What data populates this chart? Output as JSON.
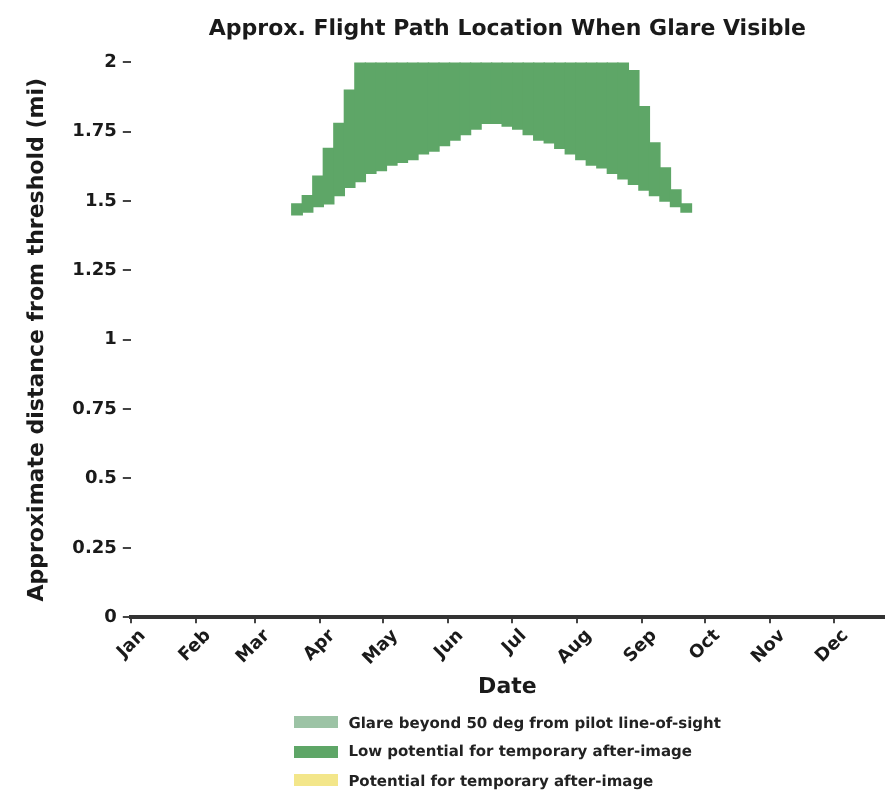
{
  "chart_data": {
    "type": "bar",
    "title": "Approx. Flight Path Location When Glare Visible",
    "xlabel": "Date",
    "ylabel": "Approximate distance from threshold (mi)",
    "x": [
      "--03-21",
      "--03-26",
      "--03-31",
      "--04-05",
      "--04-10",
      "--04-15",
      "--04-20",
      "--04-25",
      "--04-30",
      "--05-05",
      "--05-10",
      "--05-15",
      "--05-20",
      "--05-25",
      "--05-30",
      "--06-04",
      "--06-09",
      "--06-14",
      "--06-19",
      "--06-24",
      "--06-29",
      "--07-04",
      "--07-09",
      "--07-14",
      "--07-19",
      "--07-24",
      "--07-29",
      "--08-03",
      "--08-08",
      "--08-13",
      "--08-18",
      "--08-23",
      "--08-28",
      "--09-02",
      "--09-07",
      "--09-12",
      "--09-17",
      "--09-22"
    ],
    "series": [
      {
        "name": "Glare beyond 50 deg from pilot line-of-sight",
        "color": "#9cc3a5",
        "values": [
          null,
          null,
          null,
          null,
          null,
          null,
          null,
          null,
          null,
          null,
          null,
          null,
          null,
          null,
          null,
          null,
          null,
          null,
          null,
          null,
          null,
          null,
          null,
          null,
          null,
          null,
          null,
          null,
          null,
          null,
          null,
          null,
          null,
          null,
          null,
          null,
          null,
          null
        ]
      },
      {
        "name": "Low potential for temporary after-image",
        "color": "#5ea667",
        "base": [
          1.45,
          1.46,
          1.48,
          1.49,
          1.52,
          1.55,
          1.57,
          1.6,
          1.61,
          1.63,
          1.64,
          1.65,
          1.67,
          1.68,
          1.7,
          1.72,
          1.74,
          1.76,
          1.78,
          1.78,
          1.77,
          1.76,
          1.74,
          1.72,
          1.71,
          1.69,
          1.67,
          1.65,
          1.63,
          1.62,
          1.6,
          1.58,
          1.56,
          1.54,
          1.52,
          1.5,
          1.48,
          1.46
        ],
        "values": [
          0.04,
          0.06,
          0.11,
          0.2,
          0.26,
          0.35,
          0.43,
          0.4,
          0.39,
          0.37,
          0.36,
          0.35,
          0.33,
          0.32,
          0.3,
          0.28,
          0.26,
          0.24,
          0.22,
          0.22,
          0.23,
          0.24,
          0.26,
          0.28,
          0.29,
          0.31,
          0.33,
          0.35,
          0.37,
          0.38,
          0.4,
          0.42,
          0.41,
          0.3,
          0.19,
          0.12,
          0.06,
          0.03
        ]
      },
      {
        "name": "Potential for temporary after-image",
        "color": "#f3e68a",
        "values": [
          null,
          null,
          null,
          null,
          null,
          null,
          null,
          null,
          null,
          null,
          null,
          null,
          null,
          null,
          null,
          null,
          null,
          null,
          null,
          null,
          null,
          null,
          null,
          null,
          null,
          null,
          null,
          null,
          null,
          null,
          null,
          null,
          null,
          null,
          null,
          null,
          null,
          null
        ]
      }
    ],
    "xlim": [
      "--01-01",
      "--12-25"
    ],
    "xticks": [
      {
        "value": "--01-01",
        "label": "Jan"
      },
      {
        "value": "--02-01",
        "label": "Feb"
      },
      {
        "value": "--03-01",
        "label": "Mar"
      },
      {
        "value": "--04-01",
        "label": "Apr"
      },
      {
        "value": "--05-01",
        "label": "May"
      },
      {
        "value": "--06-01",
        "label": "Jun"
      },
      {
        "value": "--07-01",
        "label": "Jul"
      },
      {
        "value": "--08-01",
        "label": "Aug"
      },
      {
        "value": "--09-01",
        "label": "Sep"
      },
      {
        "value": "--10-01",
        "label": "Oct"
      },
      {
        "value": "--11-01",
        "label": "Nov"
      },
      {
        "value": "--12-01",
        "label": "Dec"
      }
    ],
    "ylim": [
      0,
      2
    ],
    "yticks": [
      0,
      0.25,
      0.5,
      0.75,
      1,
      1.25,
      1.5,
      1.75,
      2
    ],
    "grid": false,
    "legend": "bottom"
  }
}
